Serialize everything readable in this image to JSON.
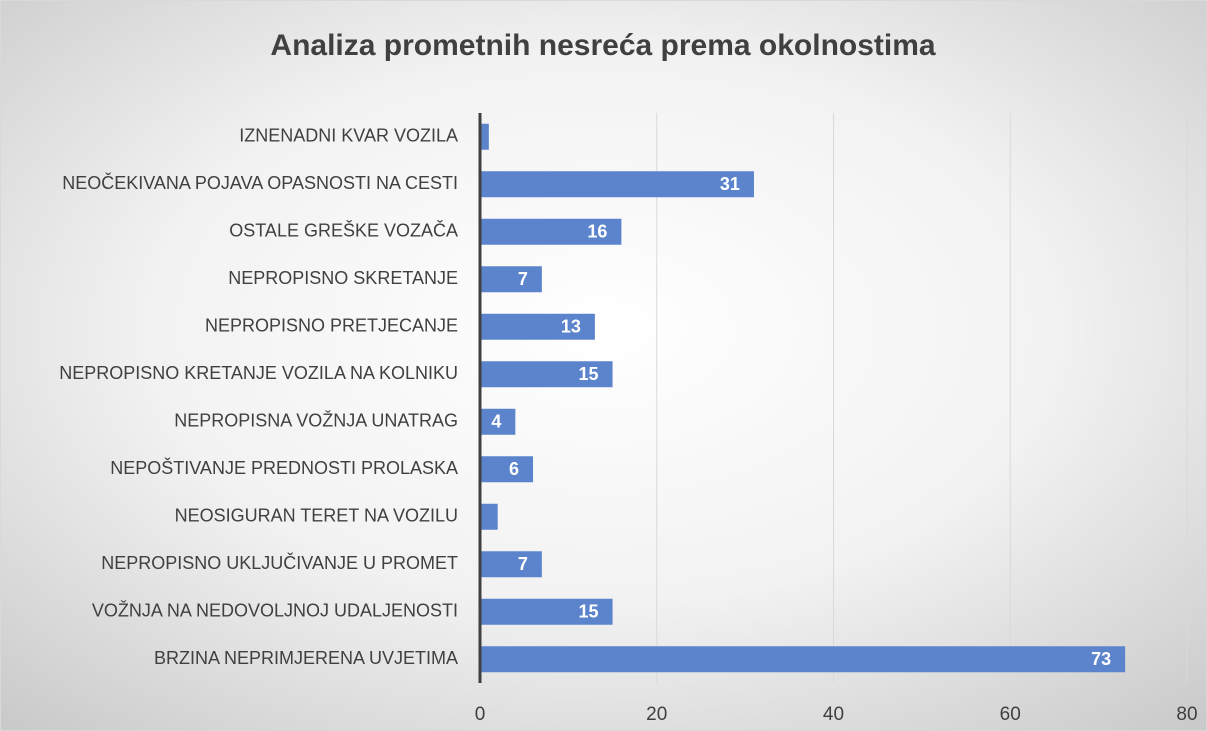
{
  "chart_data": {
    "type": "barh",
    "title": "Analiza prometnih nesreća prema okolnostima",
    "categories": [
      "IZNENADNI KVAR VOZILA",
      "NEOČEKIVANA POJAVA OPASNOSTI NA CESTI",
      "OSTALE GREŠKE VOZAČA",
      "NEPROPISNO SKRETANJE",
      "NEPROPISNO PRETJECANJE",
      "NEPROPISNO KRETANJE VOZILA NA KOLNIKU",
      "NEPROPISNA VOŽNJA UNATRAG",
      "NEPOŠTIVANJE PREDNOSTI PROLASKA",
      "NEOSIGURAN TERET NA VOZILU",
      "NEPROPISNO UKLJUČIVANJE U PROMET",
      "VOŽNJA NA NEDOVOLJNOJ UDALJENOSTI",
      "BRZINA NEPRIMJERENA UVJETIMA"
    ],
    "values": [
      1,
      31,
      16,
      7,
      13,
      15,
      4,
      6,
      2,
      7,
      15,
      73
    ],
    "value_labels": [
      null,
      "31",
      "16",
      "7",
      "13",
      "15",
      "4",
      "6",
      null,
      "7",
      "15",
      "73"
    ],
    "color": "#5b84cc",
    "xlim": [
      0,
      80
    ],
    "xticks": [
      0,
      20,
      40,
      60,
      80
    ],
    "grid": true
  }
}
